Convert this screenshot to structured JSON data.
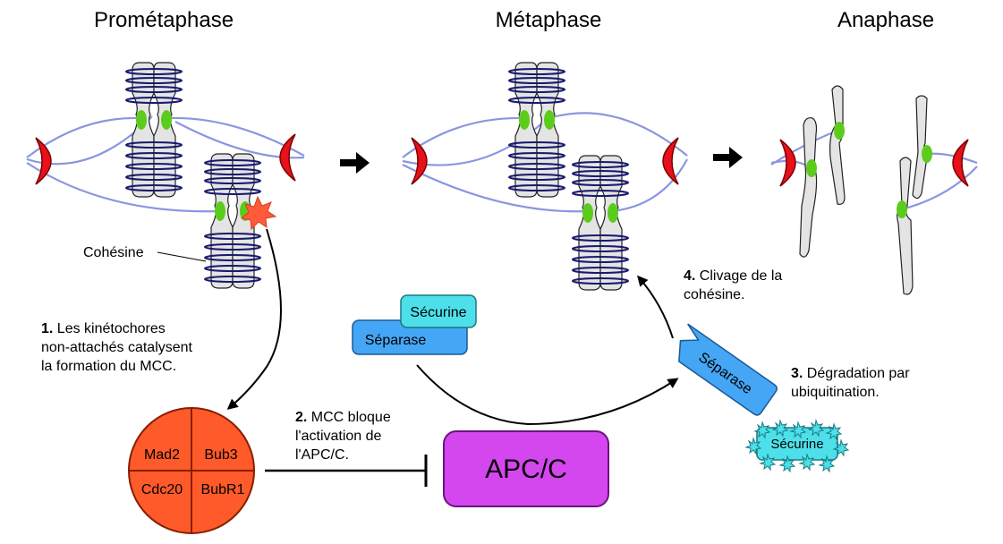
{
  "phases": {
    "prometaphase": "Prométaphase",
    "metaphase": "Métaphase",
    "anaphase": "Anaphase"
  },
  "labels": {
    "cohesine": "Cohésine",
    "step1_num": "1.",
    "step1_l1": " Les kinétochores",
    "step1_l2": "non-attachés catalysent",
    "step1_l3": "la formation du MCC.",
    "step2_num": "2.",
    "step2_l1": " MCC bloque",
    "step2_l2": "l'activation de",
    "step2_l3": "l'APC/C.",
    "step3_num": "3.",
    "step3_l1": " Dégradation par",
    "step3_l2": "ubiquitination.",
    "step4_num": "4.",
    "step4_l1": " Clivage de la",
    "step4_l2": "cohésine."
  },
  "mcc": {
    "q1": "Mad2",
    "q2": "Bub3",
    "q3": "Cdc20",
    "q4": "BubR1"
  },
  "apc": "APC/C",
  "securine": "Sécurine",
  "separase": "Séparase",
  "colors": {
    "pole": "#e8101a",
    "spindle": "#8a96e0",
    "kinetochore": "#5ccc1c",
    "cohesin": "#1a1a6e",
    "chromatid": "#e4e4e4",
    "mcc": "#ff5a2a",
    "apc": "#d446ee",
    "separase": "#44a6f4",
    "securine": "#4ee0ea",
    "star": "#ff5a3a"
  }
}
